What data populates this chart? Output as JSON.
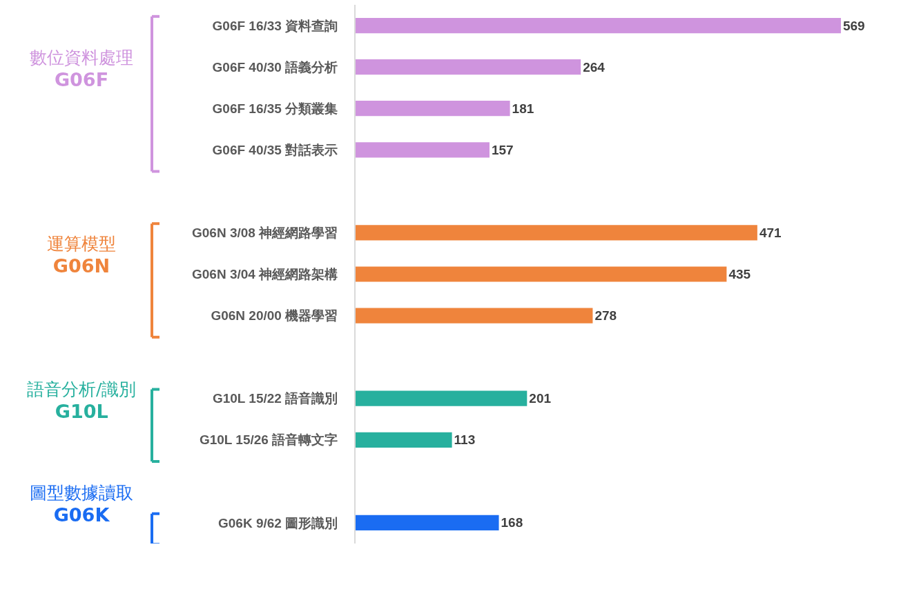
{
  "chart_data": {
    "type": "bar",
    "orientation": "horizontal",
    "data_labels": true,
    "legend": "left",
    "categories": [
      "G06F 16/33 資料查詢",
      "G06F 40/30 語義分析",
      "G06F 16/35 分類叢集",
      "G06F 40/35 對話表示",
      null,
      "G06N 3/08 神經網路學習",
      "G06N 3/04 神經網路架構",
      "G06N 20/00 機器學習",
      null,
      "G10L 15/22 語音識別",
      "G10L 15/26 語音轉文字",
      null,
      "G06K 9/62 圖形識別"
    ],
    "series": [
      {
        "name": "數位資料處理\nG06F",
        "color": "#cf94de",
        "values": [
          569,
          264,
          181,
          157,
          null,
          null,
          null,
          null,
          null,
          null,
          null,
          null,
          null
        ]
      },
      {
        "name": "運算模型\nG06N",
        "color": "#ef843c",
        "values": [
          null,
          null,
          null,
          null,
          null,
          471,
          435,
          278,
          null,
          null,
          null,
          null,
          null
        ]
      },
      {
        "name": "語音分析/識別\nG10L",
        "color": "#27b09e",
        "values": [
          null,
          null,
          null,
          null,
          null,
          null,
          null,
          null,
          null,
          201,
          113,
          null,
          null
        ]
      },
      {
        "name": "圖型數據讀取\nG06K",
        "color": "#1a6cf2",
        "values": [
          null,
          null,
          null,
          null,
          null,
          null,
          null,
          null,
          null,
          null,
          null,
          null,
          168
        ]
      }
    ],
    "xlim": [
      0,
      650
    ]
  }
}
